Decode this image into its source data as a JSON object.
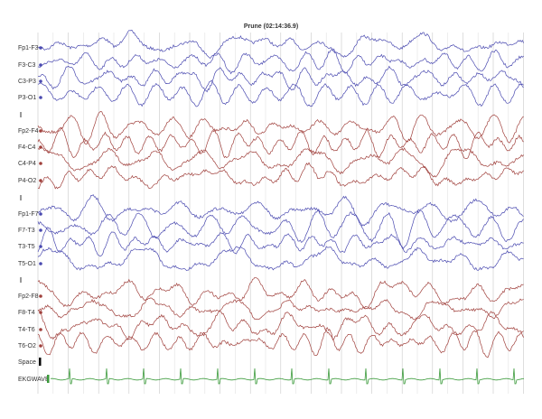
{
  "title": "Prune (02:14:36.9)",
  "channels": [
    {
      "label": "Fp1-F3",
      "color": "#4a4ab0"
    },
    {
      "label": "F3-C3",
      "color": "#4a4ab0"
    },
    {
      "label": "C3-P3",
      "color": "#4a4ab0"
    },
    {
      "label": "P3-O1",
      "color": "#4a4ab0"
    },
    {
      "label": "Fp2-F4",
      "color": "#a0403c"
    },
    {
      "label": "F4-C4",
      "color": "#a0403c"
    },
    {
      "label": "C4-P4",
      "color": "#a0403c"
    },
    {
      "label": "P4-O2",
      "color": "#a0403c"
    },
    {
      "label": "Fp1-F7",
      "color": "#4a4ab0"
    },
    {
      "label": "F7-T3",
      "color": "#4a4ab0"
    },
    {
      "label": "T3-T5",
      "color": "#4a4ab0"
    },
    {
      "label": "T5-O1",
      "color": "#4a4ab0"
    },
    {
      "label": "Fp2-F8",
      "color": "#a0403c"
    },
    {
      "label": "F8-T4",
      "color": "#a0403c"
    },
    {
      "label": "T4-T6",
      "color": "#a0403c"
    },
    {
      "label": "T6-O2",
      "color": "#a0403c"
    }
  ],
  "space": {
    "label": "Space",
    "color": "#c0392b"
  },
  "ekg": {
    "label": "EKGWAVE",
    "color": "#3a9a3a"
  }
}
